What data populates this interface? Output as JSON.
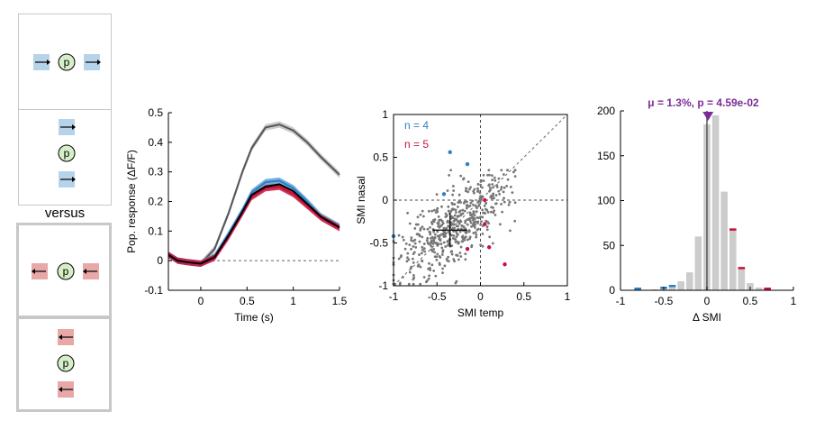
{
  "stimuli": {
    "versus_label": "versus",
    "pupil_label": "p",
    "colors": {
      "blue_patch": "#b7d3ea",
      "red_patch": "#e8a8a8",
      "pupil_fill": "#d6efc8"
    },
    "panels": [
      {
        "layout": "horizontal",
        "arrow": "right",
        "patch": "blue"
      },
      {
        "layout": "vertical",
        "arrow": "right",
        "patch": "blue"
      },
      {
        "layout": "horizontal",
        "arrow": "left",
        "patch": "red"
      },
      {
        "layout": "vertical",
        "arrow": "left",
        "patch": "red"
      }
    ]
  },
  "chart_data": [
    {
      "type": "line",
      "ylabel": "Pop. response (ΔF/F)",
      "xlabel": "Time (s)",
      "xlim": [
        -0.35,
        1.5
      ],
      "ylim": [
        -0.1,
        0.5
      ],
      "xticks": [
        "0",
        "0.5",
        "1",
        "1.5"
      ],
      "xtick_values": [
        0,
        0.5,
        1,
        1.5
      ],
      "yticks": [
        "-0.1",
        "0",
        "0.1",
        "0.2",
        "0.3",
        "0.4",
        "0.5"
      ],
      "ytick_values": [
        -0.1,
        0,
        0.1,
        0.2,
        0.3,
        0.4,
        0.5
      ],
      "zero_line": "dashed",
      "x": [
        -0.35,
        -0.25,
        -0.15,
        0.0,
        0.15,
        0.3,
        0.45,
        0.55,
        0.7,
        0.85,
        1.0,
        1.15,
        1.3,
        1.5
      ],
      "series": [
        {
          "color": "#555555",
          "band": "#c0c0c0",
          "values": [
            0.02,
            0.0,
            -0.005,
            -0.01,
            0.04,
            0.16,
            0.3,
            0.38,
            0.45,
            0.46,
            0.44,
            0.4,
            0.35,
            0.29
          ]
        },
        {
          "color": "#2f7fc0",
          "band": "#5aa0d8",
          "values": [
            0.02,
            0.0,
            -0.005,
            -0.01,
            0.015,
            0.09,
            0.17,
            0.23,
            0.265,
            0.27,
            0.245,
            0.2,
            0.15,
            0.115
          ]
        },
        {
          "color": "#c8103c",
          "band": "#c8103c",
          "values": [
            0.02,
            0.0,
            -0.005,
            -0.01,
            0.01,
            0.08,
            0.16,
            0.215,
            0.245,
            0.25,
            0.225,
            0.185,
            0.145,
            0.11
          ]
        },
        {
          "color": "#000000",
          "band": null,
          "values": [
            0.02,
            0.0,
            -0.005,
            -0.01,
            0.012,
            0.085,
            0.165,
            0.222,
            0.25,
            0.258,
            0.235,
            0.192,
            0.148,
            0.112
          ]
        }
      ]
    },
    {
      "type": "scatter",
      "xlabel": "SMI temp",
      "ylabel": "SMI nasal",
      "xlim": [
        -1,
        1
      ],
      "ylim": [
        -1,
        1
      ],
      "xticks": [
        "-1",
        "-0.5",
        "0",
        "0.5",
        "1"
      ],
      "xtick_values": [
        -1,
        -0.5,
        0,
        0.5,
        1
      ],
      "yticks": [
        "-1",
        "-0.5",
        "0",
        "0.5",
        "1"
      ],
      "ytick_values": [
        -1,
        -0.5,
        0,
        0.5,
        1
      ],
      "annotations": [
        {
          "text": "n = 4",
          "color": "#2f7fc0"
        },
        {
          "text": "n = 5",
          "color": "#c8103c"
        }
      ],
      "cross": {
        "x": -0.35,
        "y": -0.35,
        "half_x": 0.2,
        "half_y": 0.2
      },
      "n_gray": 520,
      "gray_seed": 7,
      "highlight": [
        {
          "x": -1.0,
          "y": -0.42,
          "color": "#2f7fc0"
        },
        {
          "x": -0.35,
          "y": 0.56,
          "color": "#2f7fc0"
        },
        {
          "x": -0.15,
          "y": 0.42,
          "color": "#2f7fc0"
        },
        {
          "x": -0.42,
          "y": 0.07,
          "color": "#2f7fc0"
        },
        {
          "x": 0.05,
          "y": 0.0,
          "color": "#c8103c"
        },
        {
          "x": 0.1,
          "y": -0.55,
          "color": "#c8103c"
        },
        {
          "x": 0.28,
          "y": -0.75,
          "color": "#c8103c"
        },
        {
          "x": -0.15,
          "y": -0.57,
          "color": "#c8103c"
        },
        {
          "x": 0.05,
          "y": -0.28,
          "color": "#c8103c"
        }
      ]
    },
    {
      "type": "bar",
      "xlabel": "Δ SMI",
      "title": "μ = 1.3%, p = 4.59e-02",
      "title_color": "#7b2d96",
      "marker_x": 0.013,
      "xlim": [
        -1,
        1
      ],
      "ylim": [
        0,
        200
      ],
      "xticks": [
        "-1",
        "-0.5",
        "0",
        "0.5",
        "1"
      ],
      "xtick_values": [
        -1,
        -0.5,
        0,
        0.5,
        1
      ],
      "yticks": [
        "0",
        "50",
        "100",
        "150",
        "200"
      ],
      "ytick_values": [
        0,
        50,
        100,
        150,
        200
      ],
      "bin_width": 0.1,
      "bin_starts": [
        -0.95,
        -0.85,
        -0.75,
        -0.65,
        -0.55,
        -0.45,
        -0.35,
        -0.25,
        -0.15,
        -0.05,
        0.05,
        0.15,
        0.25,
        0.35,
        0.45,
        0.55,
        0.65
      ],
      "values": [
        0,
        2,
        0,
        1,
        3,
        5,
        10,
        20,
        60,
        185,
        195,
        110,
        68,
        25,
        8,
        3,
        2
      ],
      "blue_overlay": [
        0,
        1,
        0,
        0,
        1,
        1,
        0,
        0,
        0,
        0,
        0,
        0,
        0,
        0,
        0,
        0,
        0
      ],
      "red_overlay": [
        0,
        0,
        0,
        0,
        0,
        0,
        0,
        0,
        0,
        0,
        0,
        0,
        1,
        1,
        0,
        0,
        1
      ],
      "colors": {
        "bar": "#cccccc",
        "blue": "#2f7fc0",
        "red": "#c8103c",
        "axis_line": "#555555"
      }
    }
  ]
}
